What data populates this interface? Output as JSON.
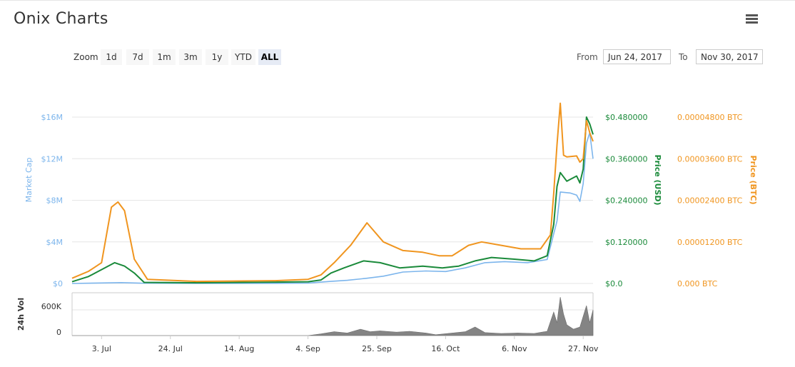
{
  "app": {
    "title": "Onix Charts"
  },
  "toolbar": {
    "zoom_label": "Zoom",
    "zoom_buttons": [
      "1d",
      "7d",
      "1m",
      "3m",
      "1y",
      "YTD",
      "ALL"
    ],
    "active_zoom": "ALL",
    "from_label": "From",
    "from_value": "Jun 24, 2017",
    "to_label": "To",
    "to_value": "Nov 30, 2017"
  },
  "colors": {
    "market_cap": "#7cb5ec",
    "price_usd": "#1a8a3a",
    "price_btc": "#f0951f",
    "volume": "#6e6e6e"
  },
  "chart_data": {
    "type": "line",
    "x_type": "date",
    "x_range": [
      "2017-06-24",
      "2017-11-30"
    ],
    "x_ticks": [
      "3. Jul",
      "24. Jul",
      "14. Aug",
      "4. Sep",
      "25. Sep",
      "16. Oct",
      "6. Nov",
      "27. Nov"
    ],
    "axes": {
      "market_cap": {
        "title": "Market Cap",
        "ticks": [
          "$0",
          "$4M",
          "$8M",
          "$12M",
          "$16M"
        ],
        "range": [
          0,
          16000000
        ]
      },
      "price_usd": {
        "title": "Price (USD)",
        "ticks": [
          "$0.0",
          "$0.120000",
          "$0.240000",
          "$0.360000",
          "$0.480000"
        ],
        "range": [
          0,
          0.48
        ]
      },
      "price_btc": {
        "title": "Price (BTC)",
        "ticks": [
          "0.000 BTC",
          "0.00001200 BTC",
          "0.00002400 BTC",
          "0.00003600 BTC",
          "0.00004800 BTC"
        ],
        "range": [
          0,
          4.8e-05
        ]
      },
      "volume": {
        "title": "24h Vol",
        "ticks": [
          "0",
          "600K"
        ],
        "range": [
          0,
          1000000
        ]
      }
    },
    "grid": true,
    "legend": "none",
    "series": [
      {
        "key": "market_cap",
        "axis": "market_cap",
        "points": [
          [
            "2017-06-24",
            0
          ],
          [
            "2017-07-03",
            50000
          ],
          [
            "2017-07-09",
            80000
          ],
          [
            "2017-07-15",
            30000
          ],
          [
            "2017-08-01",
            10000
          ],
          [
            "2017-08-25",
            15000
          ],
          [
            "2017-09-04",
            40000
          ],
          [
            "2017-09-11",
            200000
          ],
          [
            "2017-09-16",
            300000
          ],
          [
            "2017-09-22",
            500000
          ],
          [
            "2017-09-27",
            700000
          ],
          [
            "2017-10-03",
            1100000
          ],
          [
            "2017-10-10",
            1200000
          ],
          [
            "2017-10-16",
            1150000
          ],
          [
            "2017-10-22",
            1500000
          ],
          [
            "2017-10-28",
            2000000
          ],
          [
            "2017-11-03",
            2100000
          ],
          [
            "2017-11-10",
            2000000
          ],
          [
            "2017-11-16",
            2300000
          ],
          [
            "2017-11-19",
            6000000
          ],
          [
            "2017-11-20",
            8800000
          ],
          [
            "2017-11-23",
            8700000
          ],
          [
            "2017-11-25",
            8500000
          ],
          [
            "2017-11-26",
            7900000
          ],
          [
            "2017-11-27",
            9600000
          ],
          [
            "2017-11-28",
            13500000
          ],
          [
            "2017-11-29",
            14500000
          ],
          [
            "2017-11-30",
            12000000
          ]
        ]
      },
      {
        "key": "price_usd",
        "axis": "price_usd",
        "points": [
          [
            "2017-06-24",
            0.005
          ],
          [
            "2017-06-29",
            0.02
          ],
          [
            "2017-07-03",
            0.04
          ],
          [
            "2017-07-07",
            0.06
          ],
          [
            "2017-07-10",
            0.05
          ],
          [
            "2017-07-13",
            0.03
          ],
          [
            "2017-07-16",
            0.003
          ],
          [
            "2017-08-01",
            0.002
          ],
          [
            "2017-08-25",
            0.004
          ],
          [
            "2017-09-04",
            0.005
          ],
          [
            "2017-09-08",
            0.01
          ],
          [
            "2017-09-11",
            0.03
          ],
          [
            "2017-09-15",
            0.045
          ],
          [
            "2017-09-21",
            0.065
          ],
          [
            "2017-09-26",
            0.06
          ],
          [
            "2017-10-02",
            0.045
          ],
          [
            "2017-10-09",
            0.05
          ],
          [
            "2017-10-15",
            0.045
          ],
          [
            "2017-10-20",
            0.05
          ],
          [
            "2017-10-25",
            0.065
          ],
          [
            "2017-10-30",
            0.075
          ],
          [
            "2017-11-06",
            0.07
          ],
          [
            "2017-11-12",
            0.065
          ],
          [
            "2017-11-16",
            0.08
          ],
          [
            "2017-11-18",
            0.17
          ],
          [
            "2017-11-19",
            0.28
          ],
          [
            "2017-11-20",
            0.32
          ],
          [
            "2017-11-22",
            0.295
          ],
          [
            "2017-11-25",
            0.31
          ],
          [
            "2017-11-26",
            0.29
          ],
          [
            "2017-11-27",
            0.33
          ],
          [
            "2017-11-28",
            0.48
          ],
          [
            "2017-11-29",
            0.46
          ],
          [
            "2017-11-30",
            0.43
          ]
        ]
      },
      {
        "key": "price_btc",
        "axis": "price_btc",
        "points": [
          [
            "2017-06-24",
            1.5e-06
          ],
          [
            "2017-06-29",
            3.5e-06
          ],
          [
            "2017-07-03",
            6e-06
          ],
          [
            "2017-07-06",
            2.2e-05
          ],
          [
            "2017-07-08",
            2.35e-05
          ],
          [
            "2017-07-10",
            2.1e-05
          ],
          [
            "2017-07-13",
            7e-06
          ],
          [
            "2017-07-17",
            1.2e-06
          ],
          [
            "2017-08-01",
            6e-07
          ],
          [
            "2017-08-25",
            8e-07
          ],
          [
            "2017-09-04",
            1.2e-06
          ],
          [
            "2017-09-08",
            2.5e-06
          ],
          [
            "2017-09-12",
            6e-06
          ],
          [
            "2017-09-17",
            1.1e-05
          ],
          [
            "2017-09-22",
            1.75e-05
          ],
          [
            "2017-09-27",
            1.2e-05
          ],
          [
            "2017-10-03",
            9.5e-06
          ],
          [
            "2017-10-09",
            9e-06
          ],
          [
            "2017-10-14",
            8e-06
          ],
          [
            "2017-10-18",
            8e-06
          ],
          [
            "2017-10-23",
            1.1e-05
          ],
          [
            "2017-10-27",
            1.2e-05
          ],
          [
            "2017-11-02",
            1.1e-05
          ],
          [
            "2017-11-08",
            1e-05
          ],
          [
            "2017-11-14",
            1e-05
          ],
          [
            "2017-11-17",
            1.4e-05
          ],
          [
            "2017-11-18",
            2.6e-05
          ],
          [
            "2017-11-19",
            4e-05
          ],
          [
            "2017-11-20",
            5.2e-05
          ],
          [
            "2017-11-21",
            3.7e-05
          ],
          [
            "2017-11-22",
            3.65e-05
          ],
          [
            "2017-11-25",
            3.68e-05
          ],
          [
            "2017-11-26",
            3.5e-05
          ],
          [
            "2017-11-27",
            3.6e-05
          ],
          [
            "2017-11-28",
            4.7e-05
          ],
          [
            "2017-11-29",
            4.35e-05
          ],
          [
            "2017-11-30",
            4.1e-05
          ]
        ]
      },
      {
        "key": "volume",
        "axis": "volume",
        "type": "area",
        "points": [
          [
            "2017-06-24",
            0
          ],
          [
            "2017-08-14",
            0
          ],
          [
            "2017-09-04",
            0
          ],
          [
            "2017-09-08",
            40000
          ],
          [
            "2017-09-12",
            90000
          ],
          [
            "2017-09-16",
            60000
          ],
          [
            "2017-09-20",
            150000
          ],
          [
            "2017-09-23",
            90000
          ],
          [
            "2017-09-26",
            110000
          ],
          [
            "2017-10-01",
            80000
          ],
          [
            "2017-10-05",
            100000
          ],
          [
            "2017-10-10",
            60000
          ],
          [
            "2017-10-13",
            20000
          ],
          [
            "2017-10-18",
            60000
          ],
          [
            "2017-10-22",
            90000
          ],
          [
            "2017-10-25",
            200000
          ],
          [
            "2017-10-28",
            70000
          ],
          [
            "2017-11-02",
            50000
          ],
          [
            "2017-11-07",
            60000
          ],
          [
            "2017-11-12",
            50000
          ],
          [
            "2017-11-16",
            100000
          ],
          [
            "2017-11-18",
            550000
          ],
          [
            "2017-11-19",
            300000
          ],
          [
            "2017-11-20",
            900000
          ],
          [
            "2017-11-21",
            500000
          ],
          [
            "2017-11-22",
            250000
          ],
          [
            "2017-11-24",
            150000
          ],
          [
            "2017-11-26",
            200000
          ],
          [
            "2017-11-28",
            700000
          ],
          [
            "2017-11-29",
            300000
          ],
          [
            "2017-11-30",
            600000
          ]
        ]
      }
    ]
  }
}
